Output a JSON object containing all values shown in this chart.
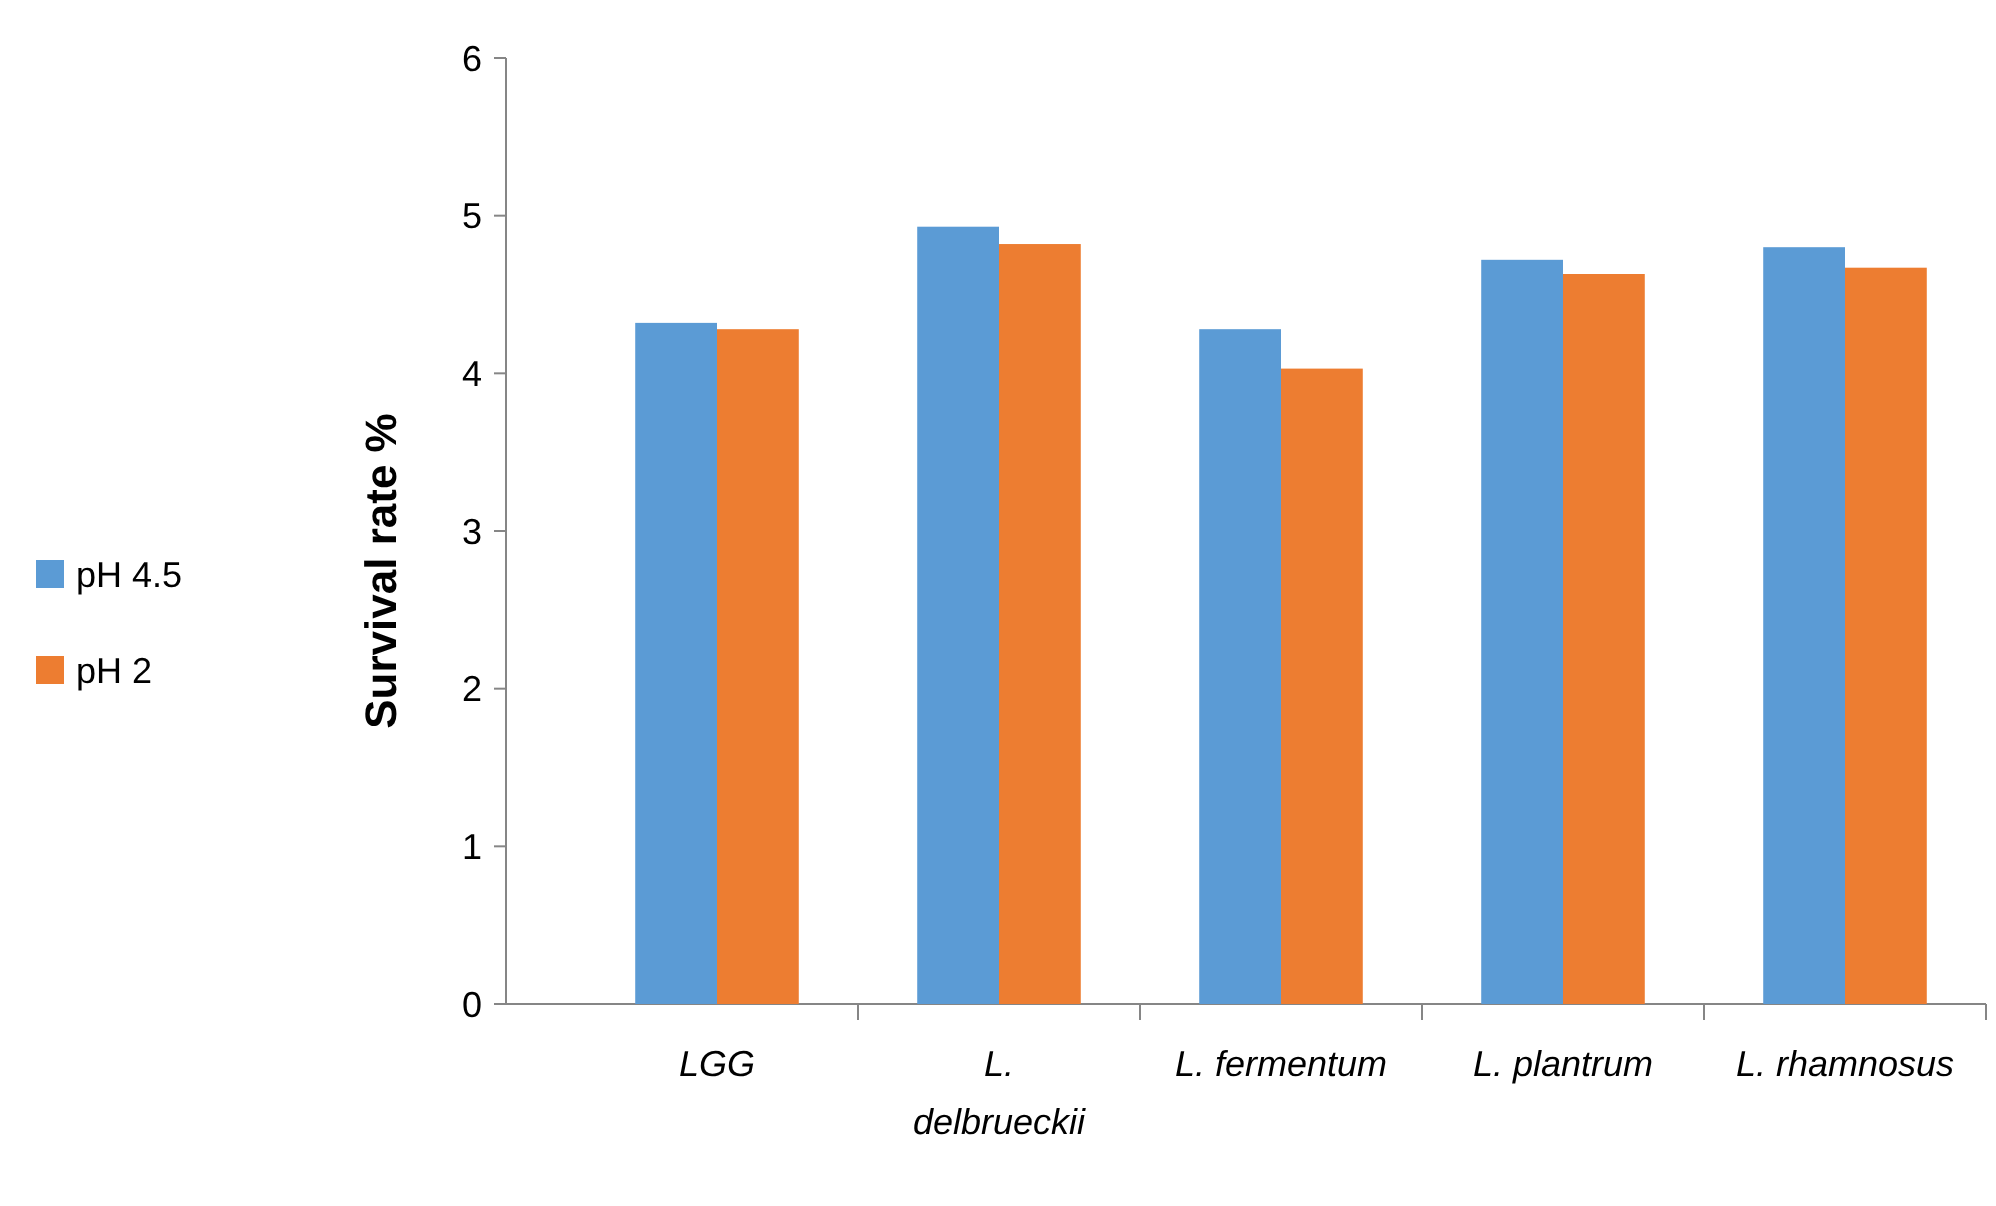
{
  "chart_data": {
    "type": "bar",
    "ylabel": "Survival rate %",
    "categories": [
      "LGG",
      "L. delbrueckii",
      "L. fermentum",
      "L. plantrum",
      "L. rhamnosus"
    ],
    "series": [
      {
        "name": "pH 4.5",
        "color": "#5b9bd5",
        "values": [
          4.32,
          4.93,
          4.28,
          4.72,
          4.8
        ]
      },
      {
        "name": "pH 2",
        "color": "#ed7d31",
        "values": [
          4.28,
          4.82,
          4.03,
          4.63,
          4.67
        ]
      }
    ],
    "ylim": [
      0,
      6
    ],
    "yticks": [
      0,
      1,
      2,
      3,
      4,
      5,
      6
    ],
    "grid": false,
    "legend": "left"
  }
}
